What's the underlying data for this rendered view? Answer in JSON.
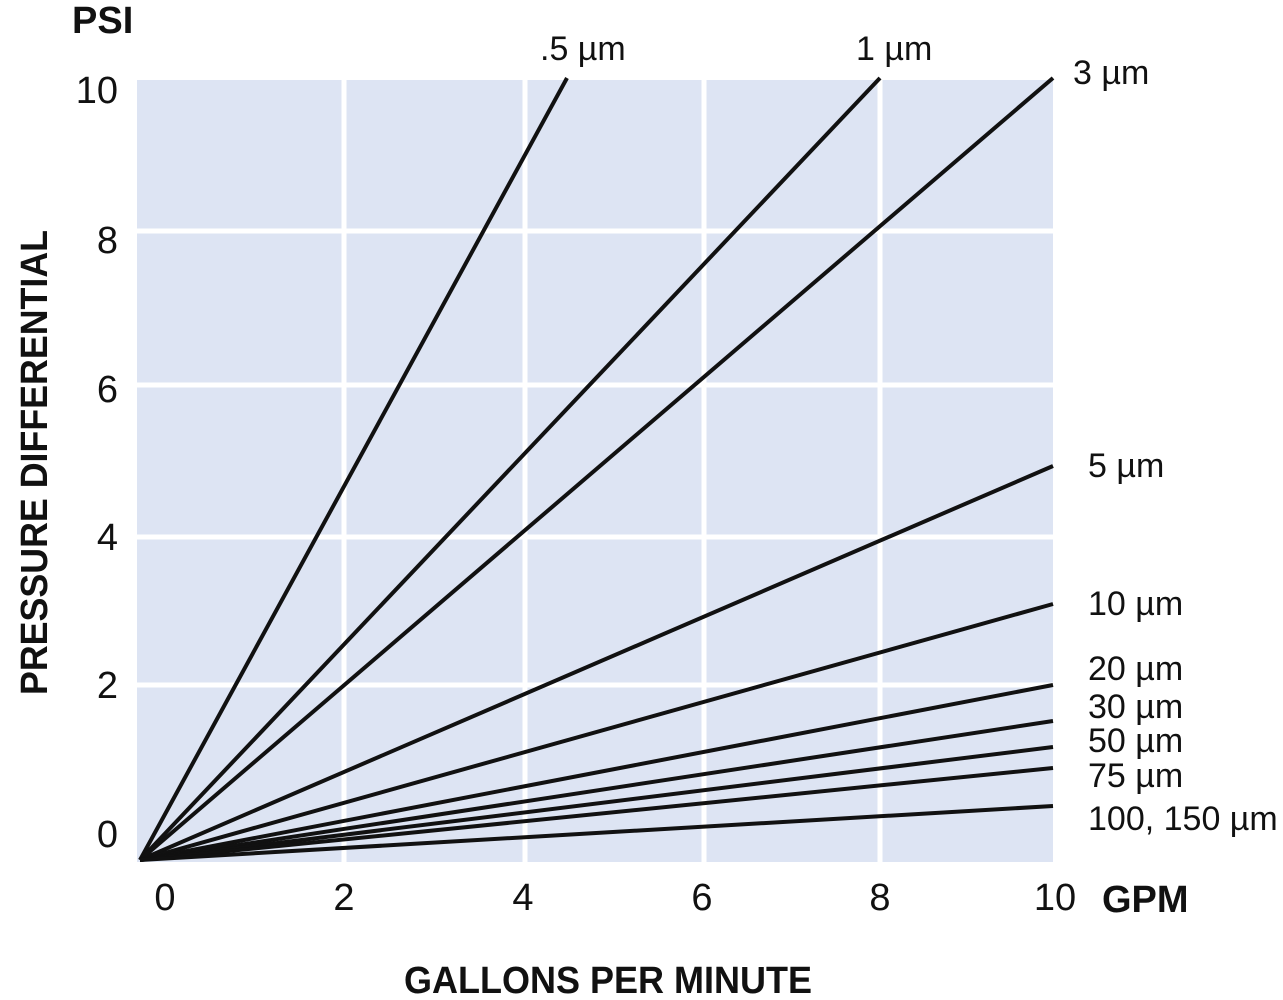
{
  "chart_data": {
    "type": "line",
    "title": "",
    "xlabel": "GALLONS PER MINUTE",
    "ylabel": "PRESSURE DIFFERENTIAL",
    "x_unit": "GPM",
    "y_unit": "PSI",
    "xlim": [
      0,
      10
    ],
    "ylim": [
      0,
      10
    ],
    "x_ticks": [
      "0",
      "2",
      "4",
      "6",
      "8",
      "10"
    ],
    "y_ticks": [
      "0",
      "2",
      "4",
      "6",
      "8",
      "10"
    ],
    "grid": true,
    "background": "#dde4f3",
    "line_color": "#111111",
    "series": [
      {
        "name": ".5 µm",
        "x": [
          0,
          4.5
        ],
        "y": [
          0,
          10
        ]
      },
      {
        "name": "1 µm",
        "x": [
          0,
          8
        ],
        "y": [
          0,
          10
        ]
      },
      {
        "name": "3 µm",
        "x": [
          0,
          10
        ],
        "y": [
          0,
          10
        ]
      },
      {
        "name": "5 µm",
        "x": [
          0,
          10
        ],
        "y": [
          0,
          5
        ]
      },
      {
        "name": "10 µm",
        "x": [
          0,
          10
        ],
        "y": [
          0,
          3.1
        ]
      },
      {
        "name": "20 µm",
        "x": [
          0,
          10
        ],
        "y": [
          0,
          2.0
        ]
      },
      {
        "name": "30 µm",
        "x": [
          0,
          10
        ],
        "y": [
          0,
          1.5
        ]
      },
      {
        "name": "50 µm",
        "x": [
          0,
          10
        ],
        "y": [
          0,
          1.15
        ]
      },
      {
        "name": "75 µm",
        "x": [
          0,
          10
        ],
        "y": [
          0,
          0.9
        ]
      },
      {
        "name": "100, 150 µm",
        "x": [
          0,
          10
        ],
        "y": [
          0,
          0.35
        ]
      }
    ]
  }
}
